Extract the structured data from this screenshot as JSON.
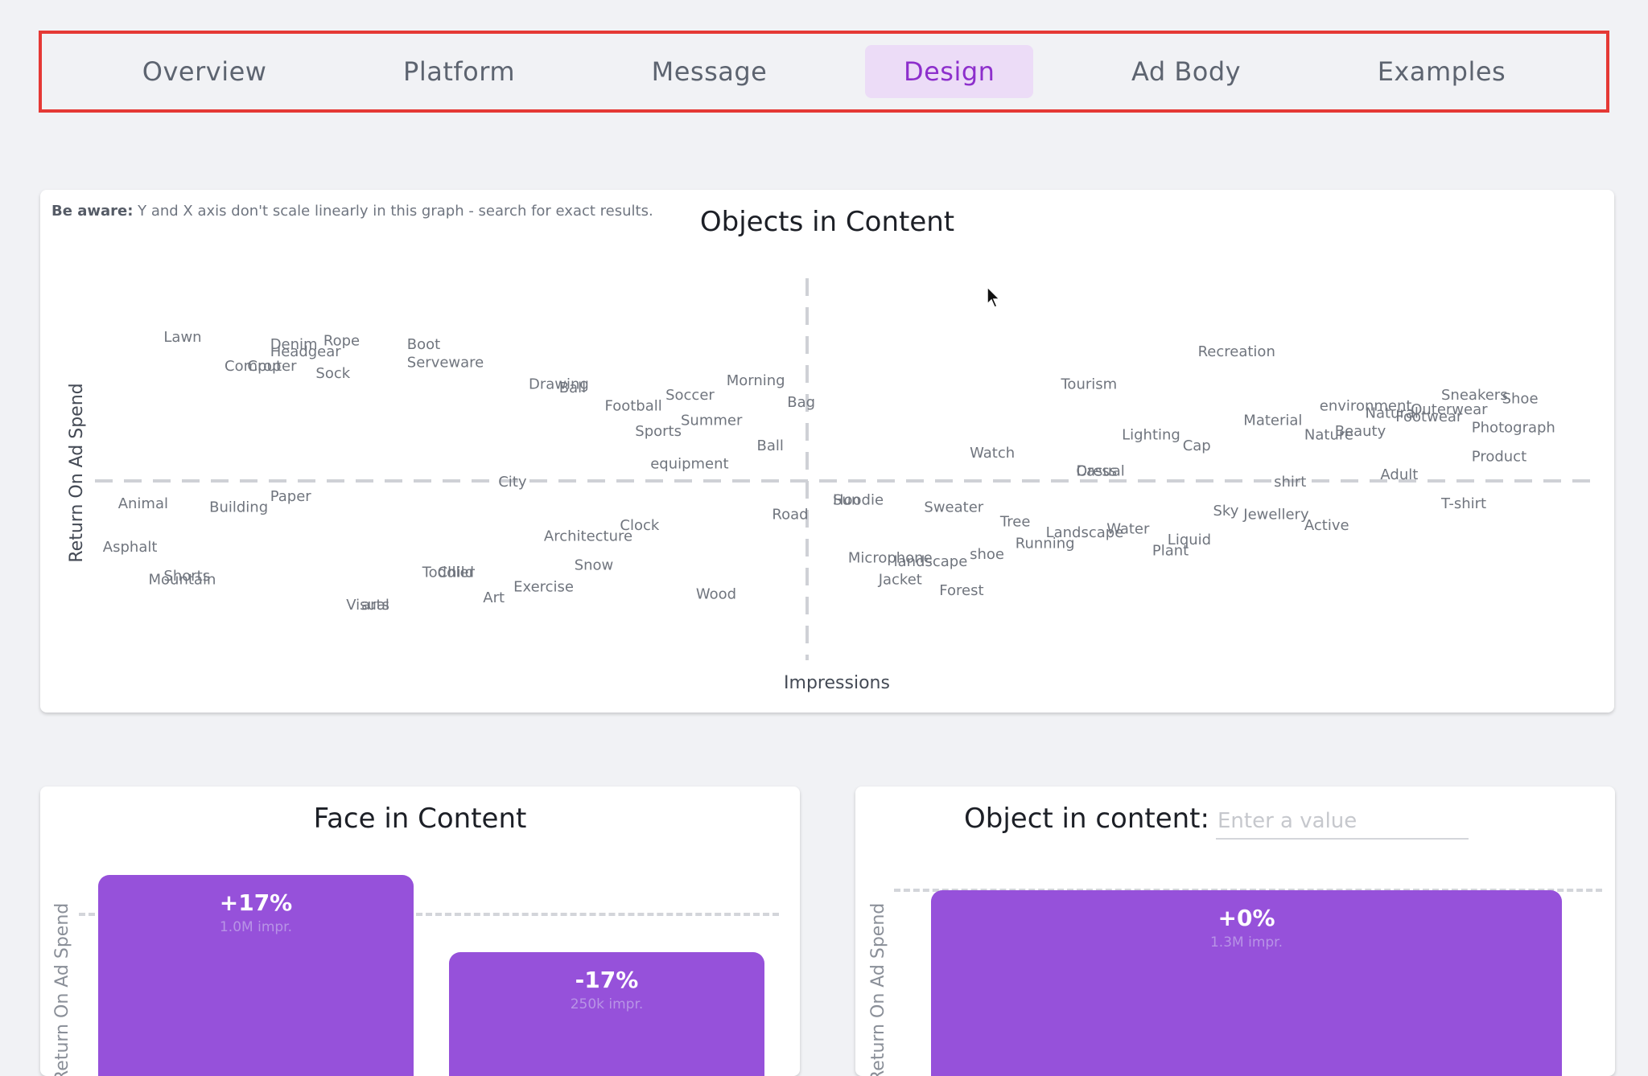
{
  "tabs": [
    {
      "label": "Overview",
      "active": false
    },
    {
      "label": "Platform",
      "active": false
    },
    {
      "label": "Message",
      "active": false
    },
    {
      "label": "Design",
      "active": true
    },
    {
      "label": "Ad Body",
      "active": false
    },
    {
      "label": "Examples",
      "active": false
    }
  ],
  "colors": {
    "accent": "#9651da",
    "tab_active_bg": "#ecdcf7",
    "tab_active_text": "#8d2fcc",
    "highlight_border": "#e53935"
  },
  "objects_chart": {
    "warning_bold": "Be aware:",
    "warning_text": " Y and X axis don't scale linearly in this graph - search for exact results.",
    "title": "Objects in Content",
    "xlabel": "Impressions",
    "ylabel": "Return On Ad Spend"
  },
  "chart_data": {
    "type": "scatter",
    "title": "Objects in Content",
    "xlabel": "Impressions",
    "ylabel": "Return On Ad Spend",
    "note": "Words placed at relative positions; axes unlabeled and non-linear",
    "points": [
      {
        "label": "Lawn",
        "x": 0.06,
        "y": 0.88
      },
      {
        "label": "Denim",
        "x": 0.13,
        "y": 0.86
      },
      {
        "label": "Rope",
        "x": 0.165,
        "y": 0.87
      },
      {
        "label": "Boot",
        "x": 0.22,
        "y": 0.86
      },
      {
        "label": "Headgear",
        "x": 0.13,
        "y": 0.84
      },
      {
        "label": "Serveware",
        "x": 0.22,
        "y": 0.81
      },
      {
        "label": "Computer",
        "x": 0.1,
        "y": 0.8
      },
      {
        "label": "Crop",
        "x": 0.115,
        "y": 0.8
      },
      {
        "label": "Sock",
        "x": 0.16,
        "y": 0.78
      },
      {
        "label": "Drawing",
        "x": 0.3,
        "y": 0.75
      },
      {
        "label": "Ball",
        "x": 0.32,
        "y": 0.74
      },
      {
        "label": "Morning",
        "x": 0.43,
        "y": 0.76
      },
      {
        "label": "Soccer",
        "x": 0.39,
        "y": 0.72
      },
      {
        "label": "Bag",
        "x": 0.47,
        "y": 0.7
      },
      {
        "label": "Football",
        "x": 0.35,
        "y": 0.69
      },
      {
        "label": "Summer",
        "x": 0.4,
        "y": 0.65
      },
      {
        "label": "Sports",
        "x": 0.37,
        "y": 0.62
      },
      {
        "label": "Ball",
        "x": 0.45,
        "y": 0.58
      },
      {
        "label": "equipment",
        "x": 0.38,
        "y": 0.53
      },
      {
        "label": "City",
        "x": 0.28,
        "y": 0.48
      },
      {
        "label": "Paper",
        "x": 0.13,
        "y": 0.44
      },
      {
        "label": "Animal",
        "x": 0.03,
        "y": 0.42
      },
      {
        "label": "Building",
        "x": 0.09,
        "y": 0.41
      },
      {
        "label": "Recreation",
        "x": 0.74,
        "y": 0.84
      },
      {
        "label": "Tourism",
        "x": 0.65,
        "y": 0.75
      },
      {
        "label": "Sneakers",
        "x": 0.9,
        "y": 0.72
      },
      {
        "label": "Shoe",
        "x": 0.94,
        "y": 0.71
      },
      {
        "label": "environment",
        "x": 0.82,
        "y": 0.69
      },
      {
        "label": "Outerwear",
        "x": 0.88,
        "y": 0.68
      },
      {
        "label": "Natural",
        "x": 0.85,
        "y": 0.67
      },
      {
        "label": "Footwear",
        "x": 0.87,
        "y": 0.66
      },
      {
        "label": "Material",
        "x": 0.77,
        "y": 0.65
      },
      {
        "label": "Photograph",
        "x": 0.92,
        "y": 0.63
      },
      {
        "label": "Beauty",
        "x": 0.83,
        "y": 0.62
      },
      {
        "label": "Lighting",
        "x": 0.69,
        "y": 0.61
      },
      {
        "label": "Nature",
        "x": 0.81,
        "y": 0.61
      },
      {
        "label": "Cap",
        "x": 0.73,
        "y": 0.58
      },
      {
        "label": "Watch",
        "x": 0.59,
        "y": 0.56
      },
      {
        "label": "Product",
        "x": 0.92,
        "y": 0.55
      },
      {
        "label": "Casual",
        "x": 0.66,
        "y": 0.51
      },
      {
        "label": "Dress",
        "x": 0.66,
        "y": 0.51
      },
      {
        "label": "Adult",
        "x": 0.86,
        "y": 0.5
      },
      {
        "label": "shirt",
        "x": 0.79,
        "y": 0.48
      },
      {
        "label": "T-shirt",
        "x": 0.9,
        "y": 0.42
      },
      {
        "label": "Hoodie",
        "x": 0.5,
        "y": 0.43
      },
      {
        "label": "Sun",
        "x": 0.5,
        "y": 0.43
      },
      {
        "label": "Sweater",
        "x": 0.56,
        "y": 0.41
      },
      {
        "label": "Sky",
        "x": 0.75,
        "y": 0.4
      },
      {
        "label": "Jewellery",
        "x": 0.77,
        "y": 0.39
      },
      {
        "label": "Road",
        "x": 0.46,
        "y": 0.39
      },
      {
        "label": "Tree",
        "x": 0.61,
        "y": 0.37
      },
      {
        "label": "Active",
        "x": 0.81,
        "y": 0.36
      },
      {
        "label": "Clock",
        "x": 0.36,
        "y": 0.36
      },
      {
        "label": "Water",
        "x": 0.68,
        "y": 0.35
      },
      {
        "label": "Landscape",
        "x": 0.64,
        "y": 0.34
      },
      {
        "label": "Architecture",
        "x": 0.31,
        "y": 0.33
      },
      {
        "label": "Liquid",
        "x": 0.72,
        "y": 0.32
      },
      {
        "label": "Running",
        "x": 0.62,
        "y": 0.31
      },
      {
        "label": "Plant",
        "x": 0.71,
        "y": 0.29
      },
      {
        "label": "shoe",
        "x": 0.59,
        "y": 0.28
      },
      {
        "label": "Asphalt",
        "x": 0.02,
        "y": 0.3
      },
      {
        "label": "Microphone",
        "x": 0.51,
        "y": 0.27
      },
      {
        "label": "landscape",
        "x": 0.54,
        "y": 0.26
      },
      {
        "label": "Snow",
        "x": 0.33,
        "y": 0.25
      },
      {
        "label": "Jacket",
        "x": 0.53,
        "y": 0.21
      },
      {
        "label": "Forest",
        "x": 0.57,
        "y": 0.18
      },
      {
        "label": "Toddler",
        "x": 0.23,
        "y": 0.23
      },
      {
        "label": "Child",
        "x": 0.24,
        "y": 0.23
      },
      {
        "label": "Exercise",
        "x": 0.29,
        "y": 0.19
      },
      {
        "label": "Shorts",
        "x": 0.06,
        "y": 0.22
      },
      {
        "label": "Mountain",
        "x": 0.05,
        "y": 0.21
      },
      {
        "label": "Wood",
        "x": 0.41,
        "y": 0.17
      },
      {
        "label": "Art",
        "x": 0.27,
        "y": 0.16
      },
      {
        "label": "Visual",
        "x": 0.18,
        "y": 0.14
      },
      {
        "label": "arts",
        "x": 0.19,
        "y": 0.14
      }
    ]
  },
  "face_chart": {
    "title": "Face in Content",
    "ylabel": "Return On Ad Spend",
    "bars": [
      {
        "pct": "+17%",
        "impr": "1.0M impr.",
        "value": 17
      },
      {
        "pct": "-17%",
        "impr": "250k impr.",
        "value": -17
      }
    ]
  },
  "object_chart": {
    "label": "Object in content:",
    "input_placeholder": "Enter a value",
    "input_value": "",
    "ylabel": "Return On Ad Spend",
    "bar": {
      "pct": "+0%",
      "impr": "1.3M impr.",
      "value": 0
    }
  }
}
